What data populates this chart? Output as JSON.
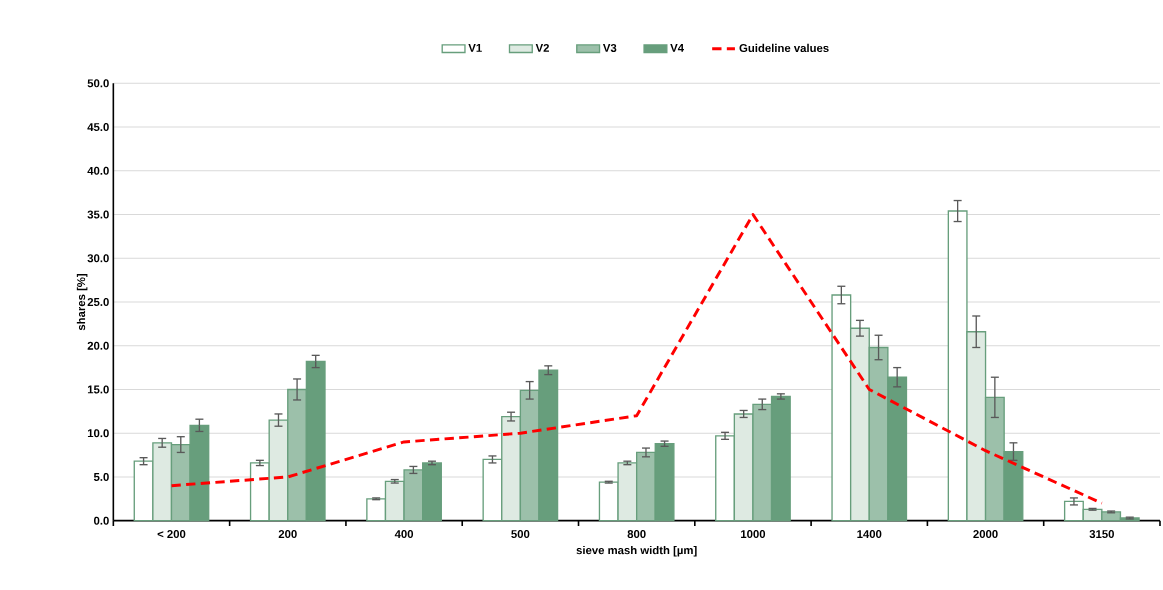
{
  "chart_data": {
    "type": "bar",
    "xlabel": "sieve mash width [µm]",
    "ylabel": "shares [%]",
    "categories": [
      "< 200",
      "200",
      "400",
      "500",
      "800",
      "1000",
      "1400",
      "2000",
      "3150"
    ],
    "series": [
      {
        "name": "V1",
        "color": "#679e7c",
        "values": [
          6.8,
          6.6,
          2.5,
          7.0,
          4.4,
          9.7,
          25.8,
          35.4,
          2.2
        ],
        "errors": [
          0.4,
          0.3,
          0.1,
          0.4,
          0.1,
          0.4,
          1.0,
          1.2,
          0.4
        ]
      },
      {
        "name": "V2",
        "color": "#679e7c",
        "values": [
          8.9,
          11.5,
          4.5,
          11.9,
          6.6,
          12.2,
          22.0,
          21.6,
          1.3
        ],
        "errors": [
          0.5,
          0.7,
          0.2,
          0.5,
          0.2,
          0.4,
          0.9,
          1.8,
          0.1
        ]
      },
      {
        "name": "V3",
        "color": "#679e7c",
        "values": [
          8.7,
          15.0,
          5.8,
          14.9,
          7.8,
          13.3,
          19.8,
          14.1,
          1.0
        ],
        "errors": [
          0.9,
          1.2,
          0.4,
          1.0,
          0.5,
          0.6,
          1.4,
          2.3,
          0.1
        ]
      },
      {
        "name": "V4",
        "color": "#679e7c",
        "values": [
          10.9,
          18.2,
          6.6,
          17.2,
          8.8,
          14.2,
          16.4,
          7.9,
          0.3
        ],
        "errors": [
          0.7,
          0.7,
          0.2,
          0.5,
          0.3,
          0.3,
          1.1,
          1.0,
          0.1
        ]
      },
      {
        "name": "Guideline values",
        "type": "line",
        "line_style": "dashed",
        "color": "#ff0000",
        "values": [
          4,
          5,
          9,
          10,
          12,
          35,
          15,
          8,
          2
        ]
      }
    ],
    "ylim": [
      0,
      50
    ],
    "yticks": [
      {
        "value": 0,
        "label": "0.0"
      },
      {
        "value": 5,
        "label": "5.0"
      },
      {
        "value": 10,
        "label": "10.0"
      },
      {
        "value": 15,
        "label": "15.0"
      },
      {
        "value": 20,
        "label": "20.0"
      },
      {
        "value": 25,
        "label": "25.0"
      },
      {
        "value": 30,
        "label": "30.0"
      },
      {
        "value": 35,
        "label": "35.0"
      },
      {
        "value": 40,
        "label": "40.0"
      },
      {
        "value": 45,
        "label": "45.0"
      },
      {
        "value": 50,
        "label": "50.0"
      }
    ],
    "grid": "y",
    "legend": "top",
    "marker": "none"
  }
}
